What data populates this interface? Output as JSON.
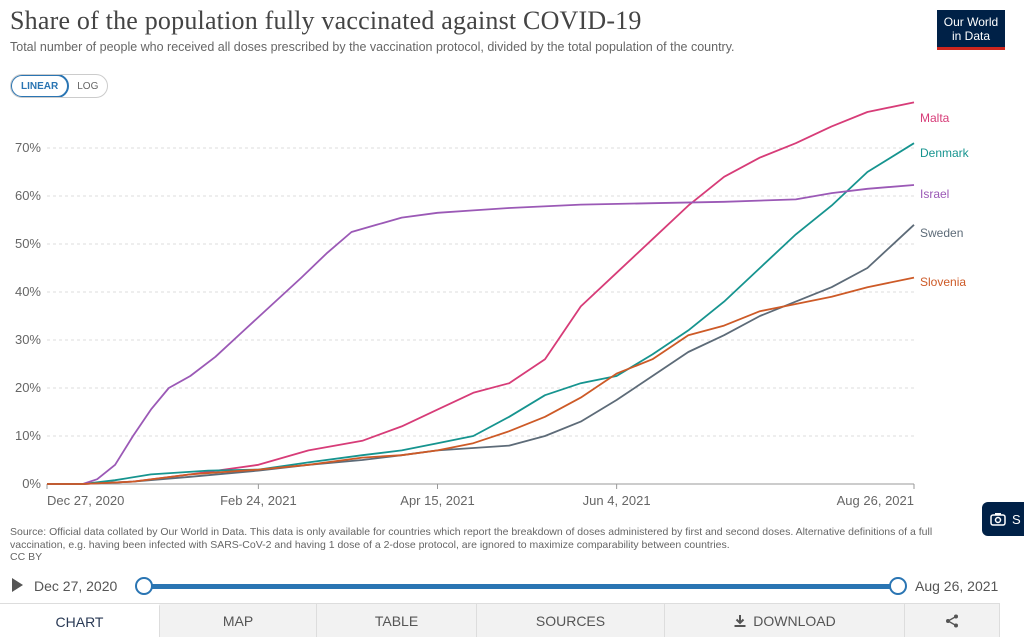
{
  "header": {
    "title": "Share of the population fully vaccinated against COVID-19",
    "subtitle": "Total number of people who received all doses prescribed by the vaccination protocol, divided by the total population of the country.",
    "logo_line1": "Our World",
    "logo_line2": "in Data"
  },
  "scale_toggle": {
    "linear": "LINEAR",
    "log": "LOG",
    "selected": "linear"
  },
  "chart_data": {
    "type": "line",
    "title": "Share of the population fully vaccinated against COVID-19",
    "ylim": [
      0,
      80
    ],
    "y_ticks": [
      "0%",
      "10%",
      "20%",
      "30%",
      "40%",
      "50%",
      "60%",
      "70%"
    ],
    "x_ticks": [
      "Dec 27, 2020",
      "Feb 24, 2021",
      "Apr 15, 2021",
      "Jun 4, 2021",
      "Aug 26, 2021"
    ],
    "x_range": [
      "2020-12-27",
      "2021-08-26"
    ],
    "grid": "horizontal dashed",
    "legend": "labels at line ends (right)",
    "series": [
      {
        "name": "Malta",
        "color": "#d73c78",
        "points": [
          [
            "2020-12-27",
            0
          ],
          [
            "2021-01-06",
            0
          ],
          [
            "2021-01-20",
            0.5
          ],
          [
            "2021-02-05",
            2
          ],
          [
            "2021-02-24",
            4
          ],
          [
            "2021-03-10",
            7
          ],
          [
            "2021-03-25",
            9
          ],
          [
            "2021-04-05",
            12
          ],
          [
            "2021-04-15",
            15.5
          ],
          [
            "2021-04-25",
            19
          ],
          [
            "2021-05-05",
            21
          ],
          [
            "2021-05-15",
            26
          ],
          [
            "2021-05-25",
            37
          ],
          [
            "2021-06-04",
            44
          ],
          [
            "2021-06-14",
            51
          ],
          [
            "2021-06-24",
            58
          ],
          [
            "2021-07-04",
            64
          ],
          [
            "2021-07-14",
            68
          ],
          [
            "2021-07-24",
            71
          ],
          [
            "2021-08-03",
            74.5
          ],
          [
            "2021-08-13",
            77.5
          ],
          [
            "2021-08-26",
            79.5
          ]
        ]
      },
      {
        "name": "Denmark",
        "color": "#16948f",
        "points": [
          [
            "2020-12-27",
            0
          ],
          [
            "2021-01-06",
            0
          ],
          [
            "2021-01-15",
            0.8
          ],
          [
            "2021-01-25",
            2
          ],
          [
            "2021-02-10",
            2.8
          ],
          [
            "2021-02-24",
            3
          ],
          [
            "2021-03-10",
            4.5
          ],
          [
            "2021-03-25",
            6
          ],
          [
            "2021-04-05",
            7
          ],
          [
            "2021-04-15",
            8.5
          ],
          [
            "2021-04-25",
            10
          ],
          [
            "2021-05-05",
            14
          ],
          [
            "2021-05-15",
            18.5
          ],
          [
            "2021-05-25",
            21
          ],
          [
            "2021-06-04",
            22.5
          ],
          [
            "2021-06-14",
            27
          ],
          [
            "2021-06-24",
            32
          ],
          [
            "2021-07-04",
            38
          ],
          [
            "2021-07-14",
            45
          ],
          [
            "2021-07-24",
            52
          ],
          [
            "2021-08-03",
            58
          ],
          [
            "2021-08-13",
            65
          ],
          [
            "2021-08-26",
            71
          ]
        ]
      },
      {
        "name": "Israel",
        "color": "#9b59b6",
        "points": [
          [
            "2020-12-27",
            0
          ],
          [
            "2021-01-06",
            0
          ],
          [
            "2021-01-10",
            1
          ],
          [
            "2021-01-15",
            4
          ],
          [
            "2021-01-20",
            10
          ],
          [
            "2021-01-25",
            15.5
          ],
          [
            "2021-01-30",
            20
          ],
          [
            "2021-02-05",
            22.5
          ],
          [
            "2021-02-12",
            26.5
          ],
          [
            "2021-02-20",
            32
          ],
          [
            "2021-02-28",
            37.5
          ],
          [
            "2021-03-08",
            43
          ],
          [
            "2021-03-15",
            48
          ],
          [
            "2021-03-22",
            52.5
          ],
          [
            "2021-03-29",
            54
          ],
          [
            "2021-04-05",
            55.5
          ],
          [
            "2021-04-15",
            56.5
          ],
          [
            "2021-04-25",
            57
          ],
          [
            "2021-05-05",
            57.5
          ],
          [
            "2021-05-25",
            58.2
          ],
          [
            "2021-06-14",
            58.5
          ],
          [
            "2021-07-04",
            58.8
          ],
          [
            "2021-07-24",
            59.3
          ],
          [
            "2021-08-03",
            60.6
          ],
          [
            "2021-08-13",
            61.5
          ],
          [
            "2021-08-26",
            62.3
          ]
        ]
      },
      {
        "name": "Sweden",
        "color": "#5d6b78",
        "points": [
          [
            "2020-12-27",
            0
          ],
          [
            "2021-01-06",
            0
          ],
          [
            "2021-01-20",
            0.5
          ],
          [
            "2021-02-05",
            1.5
          ],
          [
            "2021-02-24",
            2.8
          ],
          [
            "2021-03-10",
            4
          ],
          [
            "2021-03-25",
            5
          ],
          [
            "2021-04-05",
            6
          ],
          [
            "2021-04-15",
            7
          ],
          [
            "2021-04-25",
            7.5
          ],
          [
            "2021-05-05",
            8
          ],
          [
            "2021-05-15",
            10
          ],
          [
            "2021-05-25",
            13
          ],
          [
            "2021-06-04",
            17.5
          ],
          [
            "2021-06-14",
            22.5
          ],
          [
            "2021-06-24",
            27.5
          ],
          [
            "2021-07-04",
            31
          ],
          [
            "2021-07-14",
            35
          ],
          [
            "2021-07-24",
            38
          ],
          [
            "2021-08-03",
            41
          ],
          [
            "2021-08-13",
            45
          ],
          [
            "2021-08-26",
            54
          ]
        ]
      },
      {
        "name": "Slovenia",
        "color": "#cd5a27",
        "points": [
          [
            "2020-12-27",
            0
          ],
          [
            "2021-01-06",
            0
          ],
          [
            "2021-01-20",
            0.5
          ],
          [
            "2021-02-05",
            2
          ],
          [
            "2021-02-24",
            3
          ],
          [
            "2021-03-10",
            4
          ],
          [
            "2021-03-25",
            5.5
          ],
          [
            "2021-04-05",
            6
          ],
          [
            "2021-04-15",
            7
          ],
          [
            "2021-04-25",
            8.5
          ],
          [
            "2021-05-05",
            11
          ],
          [
            "2021-05-15",
            14
          ],
          [
            "2021-05-25",
            18
          ],
          [
            "2021-06-04",
            23
          ],
          [
            "2021-06-14",
            26
          ],
          [
            "2021-06-24",
            31
          ],
          [
            "2021-07-04",
            33
          ],
          [
            "2021-07-14",
            36
          ],
          [
            "2021-07-24",
            37.5
          ],
          [
            "2021-08-03",
            39
          ],
          [
            "2021-08-13",
            41
          ],
          [
            "2021-08-26",
            43
          ]
        ]
      }
    ]
  },
  "source_note": "Source: Official data collated by Our World in Data. This data is only available for countries which report the breakdown of doses administered by first and second doses. Alternative definitions of a full vaccination, e.g. having been infected with SARS-CoV-2 and having 1 dose of a 2-dose protocol, are ignored to maximize comparability between countries.",
  "license": "CC BY",
  "timeline": {
    "start_label": "Dec 27, 2020",
    "end_label": "Aug 26, 2021"
  },
  "tabs": [
    {
      "label": "CHART",
      "icon": "",
      "active": true
    },
    {
      "label": "MAP",
      "icon": "",
      "active": false
    },
    {
      "label": "TABLE",
      "icon": "",
      "active": false
    },
    {
      "label": "SOURCES",
      "icon": "",
      "active": false
    },
    {
      "label": "DOWNLOAD",
      "icon": "download-icon",
      "active": false
    },
    {
      "label": "",
      "icon": "share-icon",
      "active": false
    }
  ],
  "side_button": {
    "icon": "share-box-icon",
    "label": "S"
  }
}
